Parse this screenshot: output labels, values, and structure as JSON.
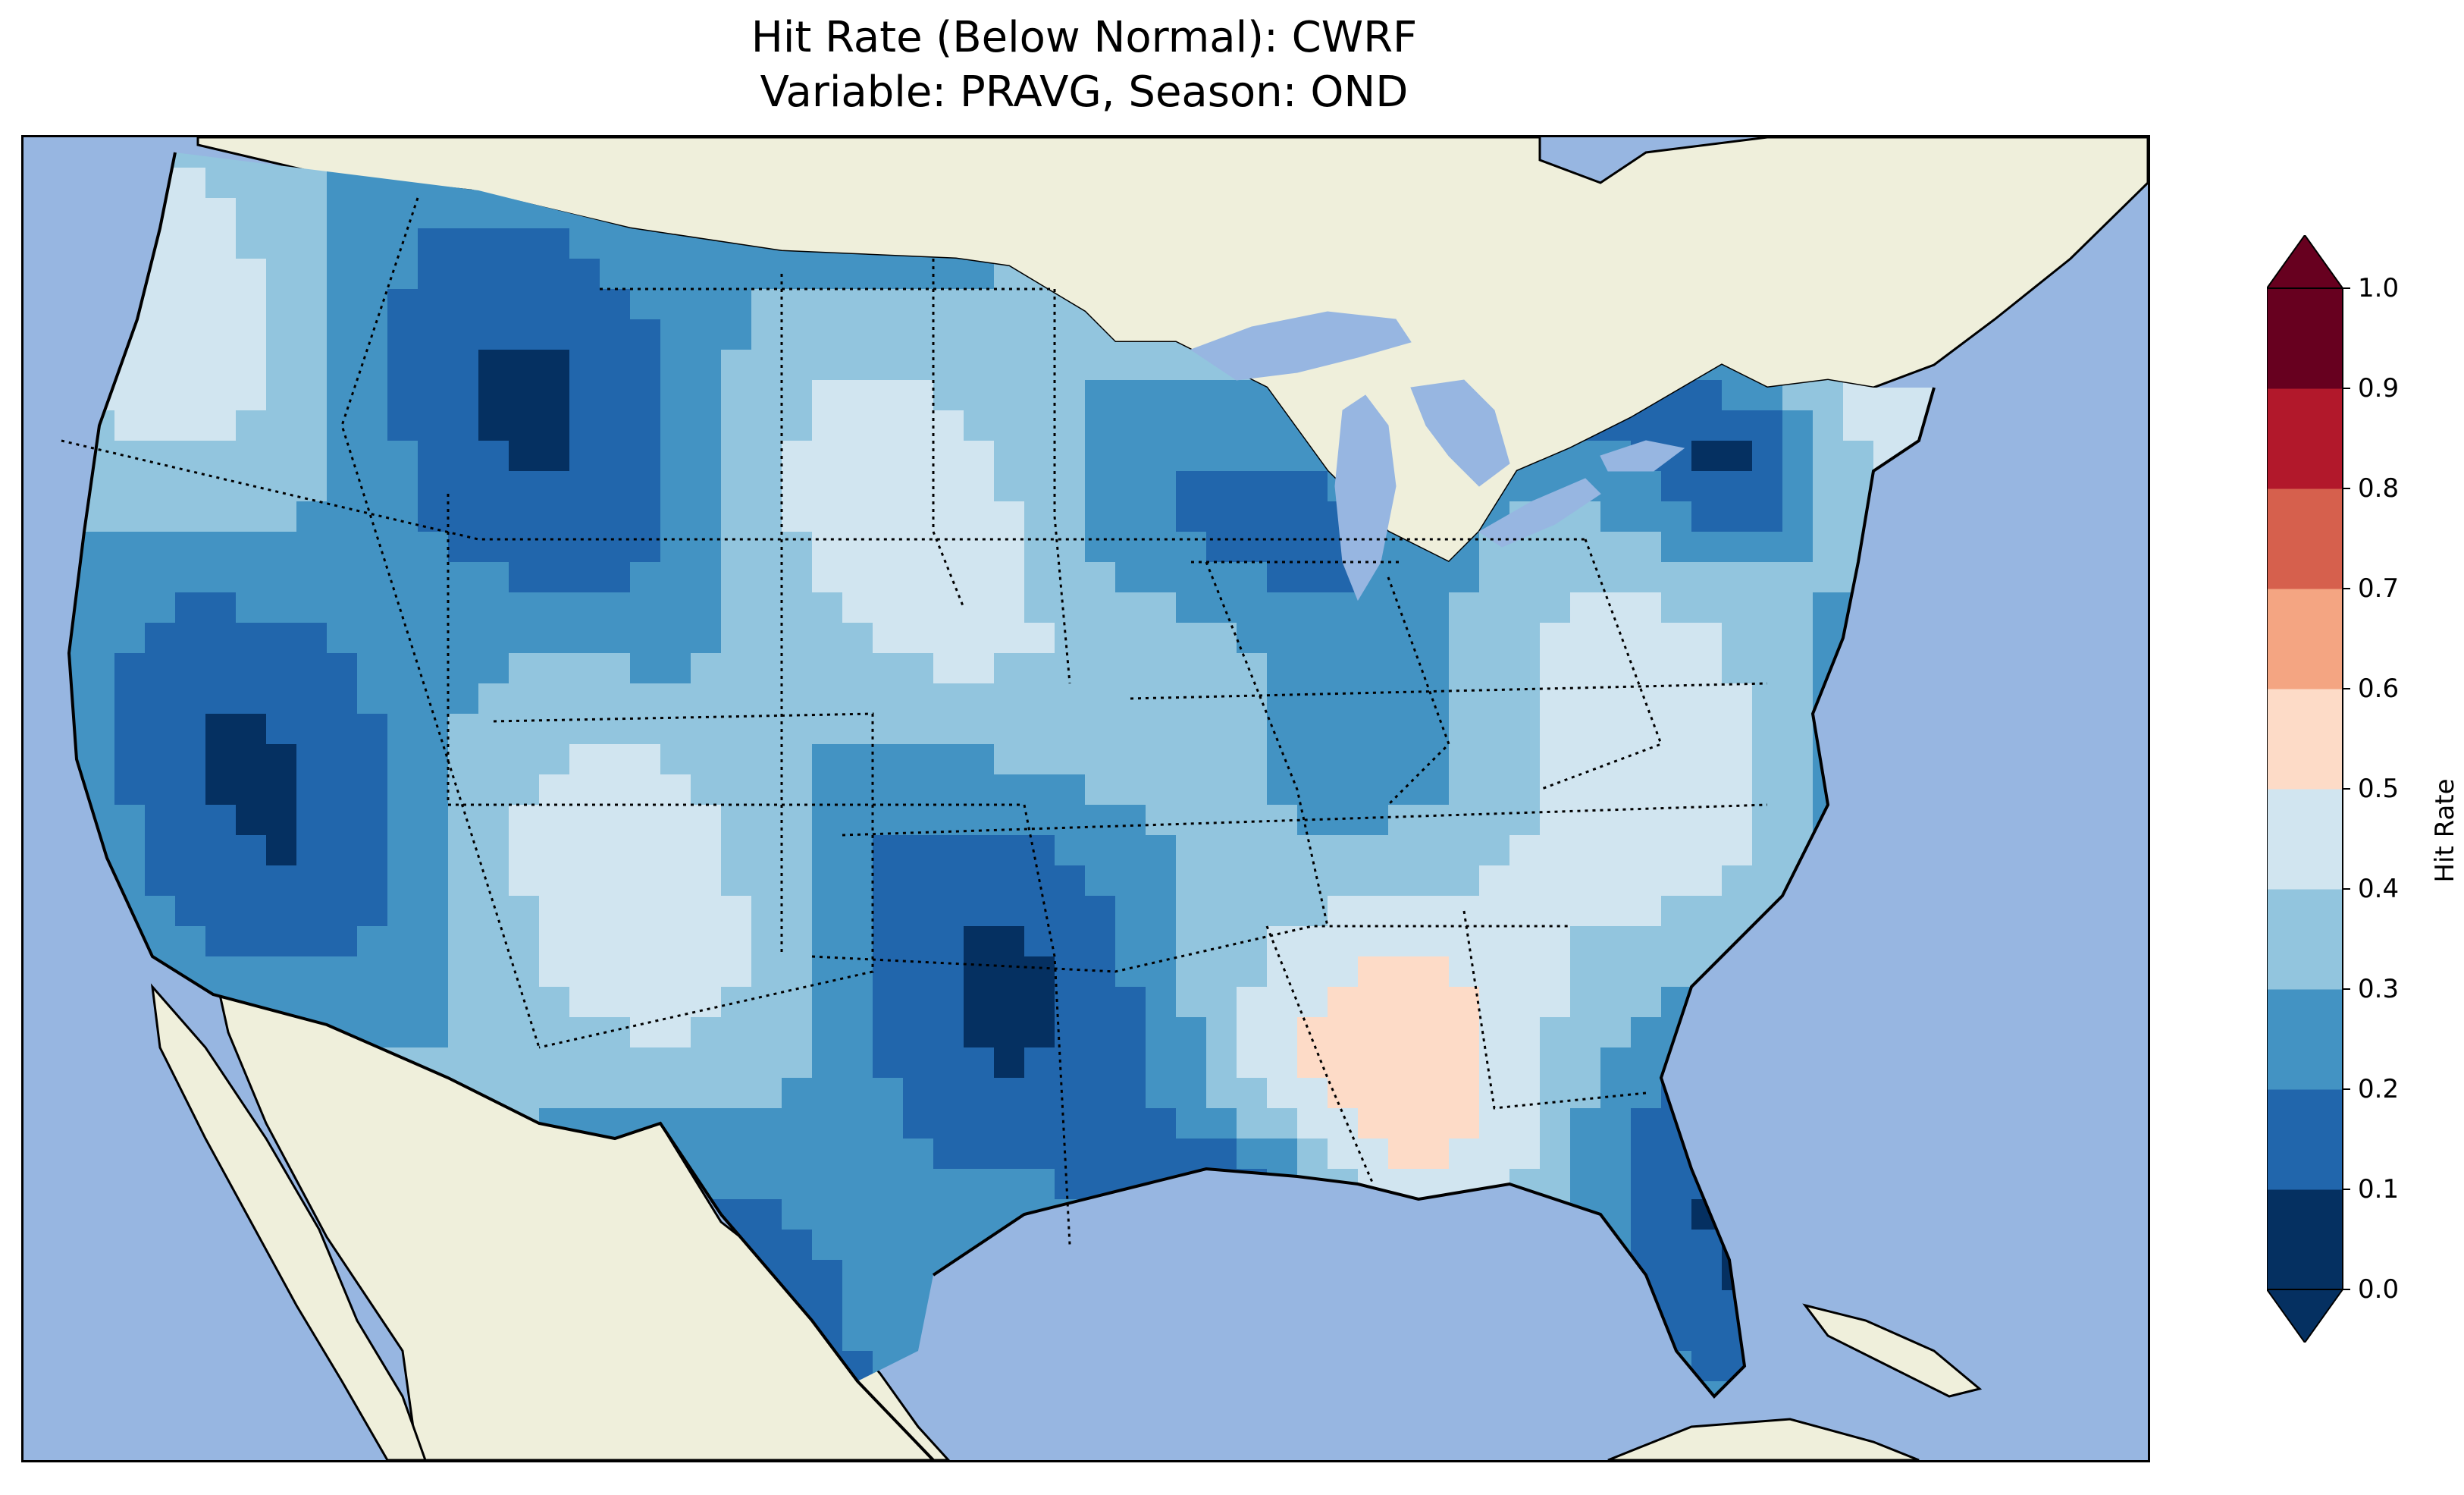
{
  "title_line1": "Hit Rate (Below Normal): CWRF",
  "title_line2": "Variable: PRAVG, Season: OND",
  "colorbar": {
    "label": "Hit Rate",
    "ticks": [
      "0.0",
      "0.1",
      "0.2",
      "0.3",
      "0.4",
      "0.5",
      "0.6",
      "0.7",
      "0.8",
      "0.9",
      "1.0"
    ],
    "colors": [
      "#053061",
      "#2166ac",
      "#4393c3",
      "#92c5de",
      "#d1e5f0",
      "#fddbc7",
      "#f4a582",
      "#d6604d",
      "#b2182b",
      "#67001f"
    ],
    "extend": "both"
  },
  "map_colors": {
    "ocean": "#97b6e1",
    "land": "#efefdb",
    "lakes": "#97b6e1"
  },
  "map_data": {
    "type": "heatmap",
    "variable": "PRAVG",
    "season": "OND",
    "model": "CWRF",
    "metric": "Hit Rate (Below Normal)",
    "value_range": [
      0.0,
      1.0
    ]
  }
}
